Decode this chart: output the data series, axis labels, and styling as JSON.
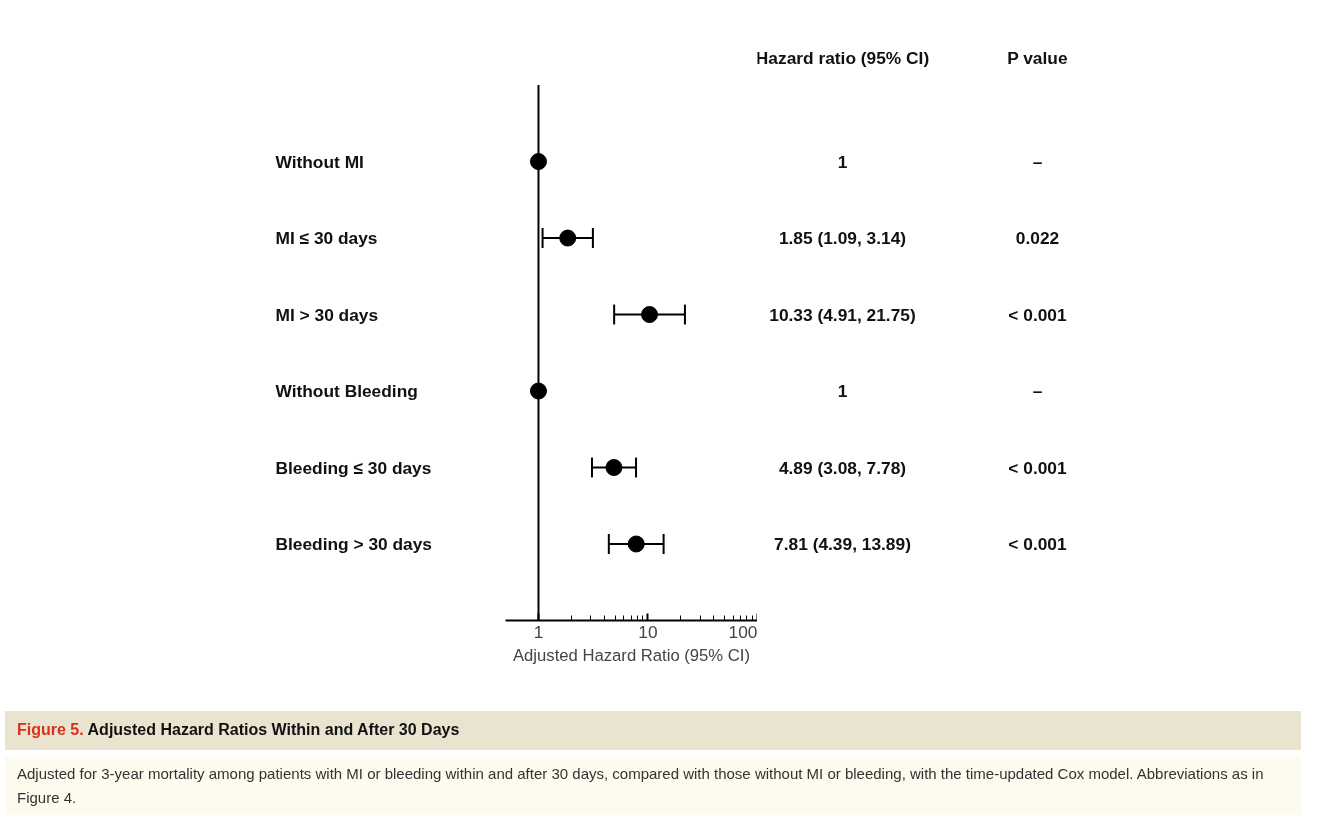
{
  "chart_data": {
    "type": "scatter",
    "orientation": "horizontal",
    "title": "Adjusted Hazard Ratios Within and After 30 Days",
    "xlabel": "Adjusted Hazard Ratio (95% CI)",
    "categories": [
      "Without MI",
      "MI ≤ 30 days",
      "MI > 30 days",
      "Without Bleeding",
      "Bleeding ≤ 30 days",
      "Bleeding > 30 days"
    ],
    "values": [
      1,
      1.85,
      10.33,
      1,
      4.89,
      7.81
    ],
    "errors": [
      null,
      [
        1.09,
        3.14
      ],
      [
        4.91,
        21.75
      ],
      null,
      [
        3.08,
        7.78
      ],
      [
        4.39,
        13.89
      ]
    ],
    "color": "#000000",
    "marker": "circle",
    "log": "x",
    "xlim": [
      0.5,
      100
    ],
    "xticks": [
      1,
      10,
      100
    ],
    "grid": false,
    "tick_labels": "x",
    "ref_lines": [
      {
        "axis": "x",
        "value": 1,
        "label": null
      }
    ],
    "annotations": [
      "Hazard ratio (95% CI)",
      "P value",
      "1",
      "1.85 (1.09, 3.14)",
      "10.33 (4.91, 21.75)",
      "1",
      "4.89 (3.08, 7.78)",
      "7.81 (4.39, 13.89)",
      "–",
      "0.022",
      "< 0.001",
      "–",
      "< 0.001",
      "< 0.001",
      "Figure 5.",
      "Adjusted for 3-year mortality among patients with MI or bleeding within and after 30 days, compared with those without MI or bleeding, with the time-updated Cox model. Abbreviations as in Figure 4."
    ]
  }
}
